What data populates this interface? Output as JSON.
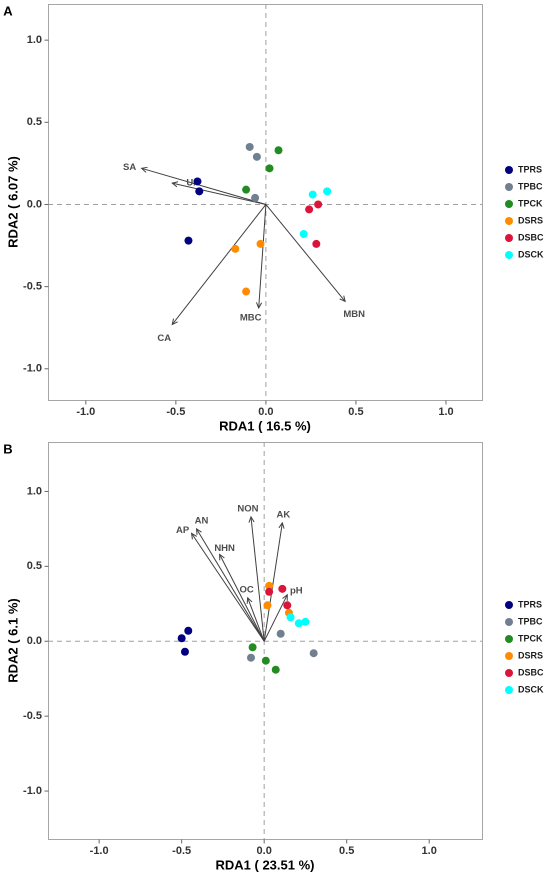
{
  "chart_data": [
    {
      "type": "scatter",
      "panel": "A",
      "xlabel": "RDA1 ( 16.5 %)",
      "ylabel": "RDA2 ( 6.07 %)",
      "xlim": [
        -1.21,
        1.2
      ],
      "ylim": [
        -1.19,
        1.22
      ],
      "xtick_labels": [
        "-1.0",
        "-0.5",
        "0.0",
        "0.5",
        "1.0"
      ],
      "ytick_labels": [
        "-1.0",
        "-0.5",
        "0.0",
        "0.5",
        "1.0"
      ],
      "grid": false,
      "zero_lines": true,
      "legend_position": "right",
      "series": [
        {
          "name": "TPRS",
          "color": "#000080",
          "x": [
            -0.38,
            -0.37,
            -0.43
          ],
          "y": [
            0.14,
            0.08,
            -0.22
          ]
        },
        {
          "name": "TPBC",
          "color": "#708090",
          "x": [
            -0.09,
            -0.05,
            -0.06
          ],
          "y": [
            0.35,
            0.29,
            0.04
          ]
        },
        {
          "name": "TPCK",
          "color": "#228B22",
          "x": [
            0.07,
            0.02,
            -0.11
          ],
          "y": [
            0.33,
            0.22,
            0.09
          ]
        },
        {
          "name": "DSRS",
          "color": "#FF8C00",
          "x": [
            -0.17,
            -0.03,
            -0.11
          ],
          "y": [
            -0.27,
            -0.24,
            -0.53
          ]
        },
        {
          "name": "DSBC",
          "color": "#DC143C",
          "x": [
            0.24,
            0.29,
            0.28
          ],
          "y": [
            -0.03,
            0.0,
            -0.24
          ]
        },
        {
          "name": "DSCK",
          "color": "#00FFFF",
          "x": [
            0.26,
            0.34,
            0.21
          ],
          "y": [
            0.06,
            0.08,
            -0.18
          ]
        }
      ],
      "arrows": [
        {
          "name": "SA",
          "x": -0.69,
          "y": 0.22
        },
        {
          "name": "UA",
          "x": -0.52,
          "y": 0.13
        },
        {
          "name": "CA",
          "x": -0.52,
          "y": -0.73
        },
        {
          "name": "MBC",
          "x": -0.04,
          "y": -0.63
        },
        {
          "name": "MBN",
          "x": 0.44,
          "y": -0.59
        }
      ]
    },
    {
      "type": "scatter",
      "panel": "B",
      "xlabel": "RDA1 ( 23.51 %)",
      "ylabel": "RDA2 ( 6.1 %)",
      "xlim": [
        -1.31,
        1.32
      ],
      "ylim": [
        -1.32,
        1.33
      ],
      "xtick_labels": [
        "-1.0",
        "-0.5",
        "0.0",
        "0.5",
        "1.0"
      ],
      "ytick_labels": [
        "-1.0",
        "-0.5",
        "0.0",
        "0.5",
        "1.0"
      ],
      "grid": false,
      "zero_lines": true,
      "legend_position": "right",
      "series": [
        {
          "name": "TPRS",
          "color": "#000080",
          "x": [
            -0.46,
            -0.5,
            -0.48
          ],
          "y": [
            0.07,
            0.02,
            -0.07
          ]
        },
        {
          "name": "TPBC",
          "color": "#708090",
          "x": [
            -0.08,
            0.1,
            0.3
          ],
          "y": [
            -0.11,
            0.05,
            -0.08
          ]
        },
        {
          "name": "TPCK",
          "color": "#228B22",
          "x": [
            -0.07,
            0.01,
            0.07
          ],
          "y": [
            -0.04,
            -0.13,
            -0.19
          ]
        },
        {
          "name": "DSRS",
          "color": "#FF8C00",
          "x": [
            0.03,
            0.02,
            0.15
          ],
          "y": [
            0.37,
            0.24,
            0.19
          ]
        },
        {
          "name": "DSBC",
          "color": "#DC143C",
          "x": [
            0.11,
            0.03,
            0.14
          ],
          "y": [
            0.35,
            0.33,
            0.24
          ]
        },
        {
          "name": "DSCK",
          "color": "#00FFFF",
          "x": [
            0.16,
            0.21,
            0.25
          ],
          "y": [
            0.16,
            0.12,
            0.13
          ]
        }
      ],
      "arrows": [
        {
          "name": "NON",
          "x": -0.08,
          "y": 0.83
        },
        {
          "name": "AK",
          "x": 0.11,
          "y": 0.79
        },
        {
          "name": "AN",
          "x": -0.41,
          "y": 0.75
        },
        {
          "name": "AP",
          "x": -0.44,
          "y": 0.72
        },
        {
          "name": "NHN",
          "x": -0.27,
          "y": 0.58
        },
        {
          "name": "OC",
          "x": -0.1,
          "y": 0.29
        },
        {
          "name": "pH",
          "x": 0.14,
          "y": 0.31
        }
      ]
    }
  ]
}
